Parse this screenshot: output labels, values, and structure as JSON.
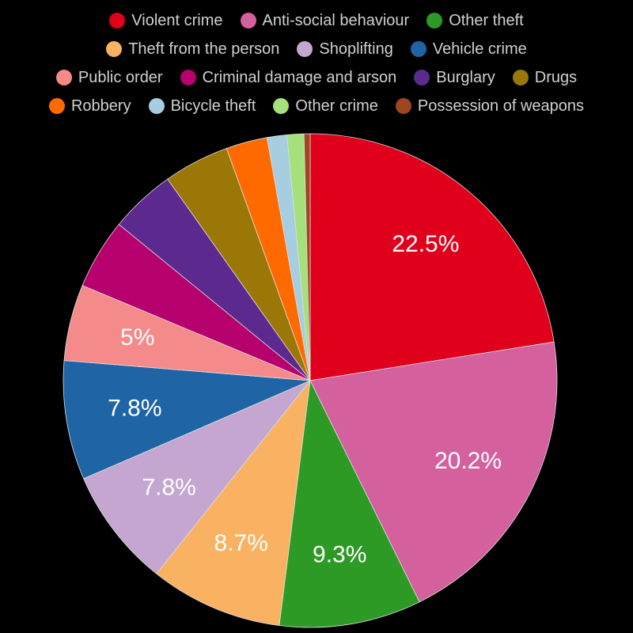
{
  "chart_data": {
    "type": "pie",
    "categories": [
      "Violent crime",
      "Anti-social behaviour",
      "Other theft",
      "Theft from the person",
      "Shoplifting",
      "Vehicle crime",
      "Public order",
      "Criminal damage and arson",
      "Burglary",
      "Drugs",
      "Robbery",
      "Bicycle theft",
      "Other crime",
      "Possession of weapons"
    ],
    "values": [
      22.5,
      20.2,
      9.3,
      8.7,
      7.8,
      7.8,
      5,
      4.6,
      4.3,
      4.3,
      2.7,
      1.3,
      1.1,
      0.4
    ],
    "value_labels": [
      "22.5%",
      "20.2%",
      "9.3%",
      "8.7%",
      "7.8%",
      "7.8%",
      "5%",
      null,
      null,
      null,
      null,
      null,
      null,
      null
    ],
    "colors": [
      "#e0001b",
      "#d4609e",
      "#2e9a26",
      "#f9b262",
      "#c4a6d0",
      "#1f65a6",
      "#f48a8a",
      "#b5006d",
      "#5c2a8e",
      "#9b7708",
      "#ff6a00",
      "#a7cde0",
      "#a6e07a",
      "#a0461e"
    ]
  }
}
